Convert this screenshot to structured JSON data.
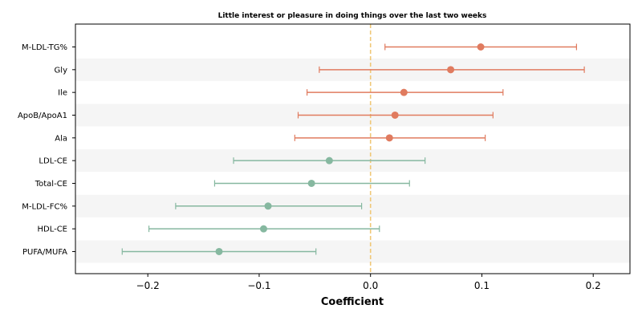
{
  "chart_data": {
    "type": "forest",
    "title": "Little interest or pleasure in doing things over the last two weeks",
    "xlabel": "Coefficient",
    "ylabel": "",
    "xlim": [
      -0.265,
      0.233
    ],
    "xticks": [
      -0.2,
      -0.1,
      0.0,
      0.1,
      0.2
    ],
    "xtick_labels": [
      "−0.2",
      "−0.1",
      "0.0",
      "0.1",
      "0.2"
    ],
    "reference_line": 0.0,
    "reference_line_style": "dashed",
    "alternating_row_shading": true,
    "colors": {
      "positive": "#e07b5f",
      "negative": "#86b8a0",
      "reference_line": "#f0c878",
      "row_shade": "#f5f5f5"
    },
    "rows": [
      {
        "label": "M-LDL-TG%",
        "estimate": 0.099,
        "ci_low": 0.013,
        "ci_high": 0.185
      },
      {
        "label": "Gly",
        "estimate": 0.072,
        "ci_low": -0.046,
        "ci_high": 0.192
      },
      {
        "label": "Ile",
        "estimate": 0.03,
        "ci_low": -0.057,
        "ci_high": 0.119
      },
      {
        "label": "ApoB/ApoA1",
        "estimate": 0.022,
        "ci_low": -0.065,
        "ci_high": 0.11
      },
      {
        "label": "Ala",
        "estimate": 0.017,
        "ci_low": -0.068,
        "ci_high": 0.103
      },
      {
        "label": "LDL-CE",
        "estimate": -0.037,
        "ci_low": -0.123,
        "ci_high": 0.049
      },
      {
        "label": "Total-CE",
        "estimate": -0.053,
        "ci_low": -0.14,
        "ci_high": 0.035
      },
      {
        "label": "M-LDL-FC%",
        "estimate": -0.092,
        "ci_low": -0.175,
        "ci_high": -0.008
      },
      {
        "label": "HDL-CE",
        "estimate": -0.096,
        "ci_low": -0.199,
        "ci_high": 0.008
      },
      {
        "label": "PUFA/MUFA",
        "estimate": -0.136,
        "ci_low": -0.223,
        "ci_high": -0.049
      }
    ]
  }
}
